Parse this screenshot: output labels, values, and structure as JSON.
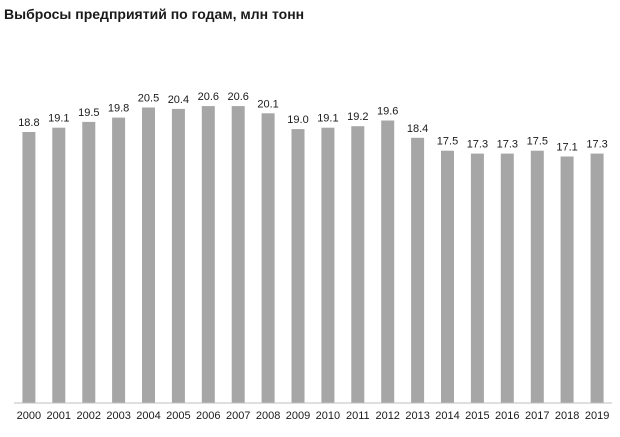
{
  "chart_data": {
    "type": "bar",
    "title": "Выбросы предприятий по годам, млн тонн",
    "categories": [
      "2000",
      "2001",
      "2002",
      "2003",
      "2004",
      "2005",
      "2006",
      "2007",
      "2008",
      "2009",
      "2010",
      "2011",
      "2012",
      "2013",
      "2014",
      "2015",
      "2016",
      "2017",
      "2018",
      "2019"
    ],
    "values": [
      18.8,
      19.1,
      19.5,
      19.8,
      20.5,
      20.4,
      20.6,
      20.6,
      20.1,
      19.0,
      19.1,
      19.2,
      19.6,
      18.4,
      17.5,
      17.3,
      17.3,
      17.5,
      17.1,
      17.3
    ],
    "value_labels": [
      "18.8",
      "19.1",
      "19.5",
      "19.8",
      "20.5",
      "20.4",
      "20.6",
      "20.6",
      "20.1",
      "19.0",
      "19.1",
      "19.2",
      "19.6",
      "18.4",
      "17.5",
      "17.3",
      "17.3",
      "17.5",
      "17.1",
      "17.3"
    ],
    "ylim": [
      0,
      23
    ],
    "bar_color": "#a6a6a6",
    "grid": false,
    "legend": false
  }
}
